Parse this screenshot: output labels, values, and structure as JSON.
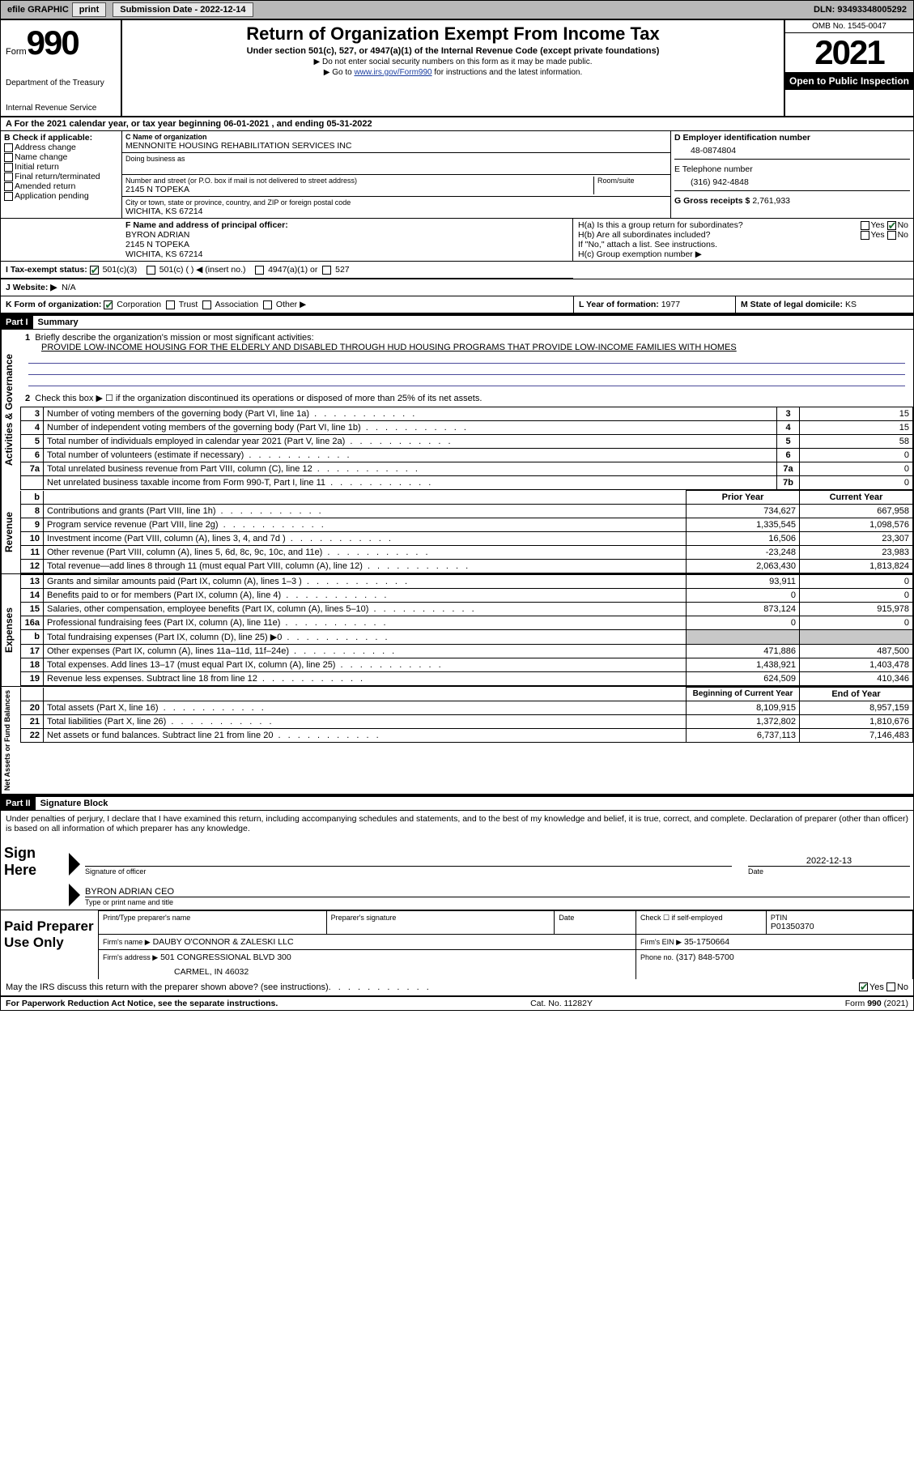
{
  "topbar": {
    "efile_label": "efile GRAPHIC",
    "print_btn": "print",
    "submission_label": "Submission Date - 2022-12-14",
    "dln_label": "DLN: 93493348005292"
  },
  "header": {
    "form_word": "Form",
    "form_num": "990",
    "dept": "Department of the Treasury",
    "irs": "Internal Revenue Service",
    "title": "Return of Organization Exempt From Income Tax",
    "subtitle": "Under section 501(c), 527, or 4947(a)(1) of the Internal Revenue Code (except private foundations)",
    "note1": "▶ Do not enter social security numbers on this form as it may be made public.",
    "note2_pre": "▶ Go to ",
    "note2_link": "www.irs.gov/Form990",
    "note2_post": " for instructions and the latest information.",
    "omb": "OMB No. 1545-0047",
    "year": "2021",
    "inspect": "Open to Public Inspection"
  },
  "sectionA": {
    "year_line": "A For the 2021 calendar year, or tax year beginning 06-01-2021   , and ending 05-31-2022",
    "b_label": "B Check if applicable:",
    "b_opts": [
      "Address change",
      "Name change",
      "Initial return",
      "Final return/terminated",
      "Amended return",
      "Application pending"
    ],
    "c_label": "C Name of organization",
    "org_name": "MENNONITE HOUSING REHABILITATION SERVICES INC",
    "dba_label": "Doing business as",
    "addr_label": "Number and street (or P.O. box if mail is not delivered to street address)",
    "room_label": "Room/suite",
    "addr": "2145 N TOPEKA",
    "city_label": "City or town, state or province, country, and ZIP or foreign postal code",
    "city": "WICHITA, KS  67214",
    "d_label": "D Employer identification number",
    "ein": "48-0874804",
    "e_label": "E Telephone number",
    "phone": "(316) 942-4848",
    "g_label": "G Gross receipts $",
    "gross": "2,761,933",
    "f_label": "F  Name and address of principal officer:",
    "officer_name": "BYRON ADRIAN",
    "officer_addr": "2145 N TOPEKA",
    "officer_city": "WICHITA, KS  67214",
    "ha_label": "H(a)  Is this a group return for subordinates?",
    "hb_label": "H(b)  Are all subordinates included?",
    "hb_note": "If \"No,\" attach a list. See instructions.",
    "hc_label": "H(c)  Group exemption number  ▶",
    "yes": "Yes",
    "no": "No",
    "i_label": "I   Tax-exempt status:",
    "i_501c3": "501(c)(3)",
    "i_501c": "501(c) (  ) ◀ (insert no.)",
    "i_4947": "4947(a)(1) or",
    "i_527": "527",
    "j_label": "J   Website: ▶",
    "website": "N/A",
    "k_label": "K Form of organization:",
    "k_corp": "Corporation",
    "k_trust": "Trust",
    "k_assoc": "Association",
    "k_other": "Other ▶",
    "l_label": "L Year of formation: ",
    "l_val": "1977",
    "m_label": "M State of legal domicile: ",
    "m_val": "KS"
  },
  "part1": {
    "hdr": "Part I",
    "title": "Summary",
    "vlabel_act": "Activities & Governance",
    "vlabel_rev": "Revenue",
    "vlabel_exp": "Expenses",
    "vlabel_net": "Net Assets or Fund Balances",
    "line1_label": "Briefly describe the organization's mission or most significant activities:",
    "mission": "PROVIDE LOW-INCOME HOUSING FOR THE ELDERLY AND DISABLED THROUGH HUD HOUSING PROGRAMS THAT PROVIDE LOW-INCOME FAMILIES WITH HOMES",
    "line2": "Check this box ▶ ☐  if the organization discontinued its operations or disposed of more than 25% of its net assets.",
    "rows_gov": [
      {
        "n": "3",
        "d": "Number of voting members of the governing body (Part VI, line 1a)",
        "b": "3",
        "v": "15"
      },
      {
        "n": "4",
        "d": "Number of independent voting members of the governing body (Part VI, line 1b)",
        "b": "4",
        "v": "15"
      },
      {
        "n": "5",
        "d": "Total number of individuals employed in calendar year 2021 (Part V, line 2a)",
        "b": "5",
        "v": "58"
      },
      {
        "n": "6",
        "d": "Total number of volunteers (estimate if necessary)",
        "b": "6",
        "v": "0"
      },
      {
        "n": "7a",
        "d": "Total unrelated business revenue from Part VIII, column (C), line 12",
        "b": "7a",
        "v": "0"
      },
      {
        "n": "",
        "d": "Net unrelated business taxable income from Form 990-T, Part I, line 11",
        "b": "7b",
        "v": "0"
      }
    ],
    "col_prior": "Prior Year",
    "col_current": "Current Year",
    "rows_rev": [
      {
        "n": "8",
        "d": "Contributions and grants (Part VIII, line 1h)",
        "p": "734,627",
        "c": "667,958"
      },
      {
        "n": "9",
        "d": "Program service revenue (Part VIII, line 2g)",
        "p": "1,335,545",
        "c": "1,098,576"
      },
      {
        "n": "10",
        "d": "Investment income (Part VIII, column (A), lines 3, 4, and 7d )",
        "p": "16,506",
        "c": "23,307"
      },
      {
        "n": "11",
        "d": "Other revenue (Part VIII, column (A), lines 5, 6d, 8c, 9c, 10c, and 11e)",
        "p": "-23,248",
        "c": "23,983"
      },
      {
        "n": "12",
        "d": "Total revenue—add lines 8 through 11 (must equal Part VIII, column (A), line 12)",
        "p": "2,063,430",
        "c": "1,813,824"
      }
    ],
    "rows_exp": [
      {
        "n": "13",
        "d": "Grants and similar amounts paid (Part IX, column (A), lines 1–3 )",
        "p": "93,911",
        "c": "0"
      },
      {
        "n": "14",
        "d": "Benefits paid to or for members (Part IX, column (A), line 4)",
        "p": "0",
        "c": "0"
      },
      {
        "n": "15",
        "d": "Salaries, other compensation, employee benefits (Part IX, column (A), lines 5–10)",
        "p": "873,124",
        "c": "915,978"
      },
      {
        "n": "16a",
        "d": "Professional fundraising fees (Part IX, column (A), line 11e)",
        "p": "0",
        "c": "0"
      },
      {
        "n": "b",
        "d": "Total fundraising expenses (Part IX, column (D), line 25) ▶0",
        "p": "",
        "c": "",
        "shade": true
      },
      {
        "n": "17",
        "d": "Other expenses (Part IX, column (A), lines 11a–11d, 11f–24e)",
        "p": "471,886",
        "c": "487,500"
      },
      {
        "n": "18",
        "d": "Total expenses. Add lines 13–17 (must equal Part IX, column (A), line 25)",
        "p": "1,438,921",
        "c": "1,403,478"
      },
      {
        "n": "19",
        "d": "Revenue less expenses. Subtract line 18 from line 12",
        "p": "624,509",
        "c": "410,346"
      }
    ],
    "col_begin": "Beginning of Current Year",
    "col_end": "End of Year",
    "rows_net": [
      {
        "n": "20",
        "d": "Total assets (Part X, line 16)",
        "p": "8,109,915",
        "c": "8,957,159"
      },
      {
        "n": "21",
        "d": "Total liabilities (Part X, line 26)",
        "p": "1,372,802",
        "c": "1,810,676"
      },
      {
        "n": "22",
        "d": "Net assets or fund balances. Subtract line 21 from line 20",
        "p": "6,737,113",
        "c": "7,146,483"
      }
    ]
  },
  "part2": {
    "hdr": "Part II",
    "title": "Signature Block",
    "penalty": "Under penalties of perjury, I declare that I have examined this return, including accompanying schedules and statements, and to the best of my knowledge and belief, it is true, correct, and complete. Declaration of preparer (other than officer) is based on all information of which preparer has any knowledge.",
    "sign_here": "Sign Here",
    "sig_officer": "Signature of officer",
    "sig_date": "Date",
    "sig_date_val": "2022-12-13",
    "sig_name": "BYRON ADRIAN CEO",
    "sig_name_lbl": "Type or print name and title",
    "paid": "Paid Preparer Use Only",
    "p_name_lbl": "Print/Type preparer's name",
    "p_sig_lbl": "Preparer's signature",
    "p_date_lbl": "Date",
    "p_self_lbl": "Check ☐ if self-employed",
    "p_ptin_lbl": "PTIN",
    "p_ptin": "P01350370",
    "p_firm_lbl": "Firm's name    ▶",
    "p_firm": "DAUBY O'CONNOR & ZALESKI LLC",
    "p_ein_lbl": "Firm's EIN ▶",
    "p_ein": "35-1750664",
    "p_addr_lbl": "Firm's address ▶",
    "p_addr": "501 CONGRESSIONAL BLVD 300",
    "p_addr2": "CARMEL, IN  46032",
    "p_phone_lbl": "Phone no.",
    "p_phone": "(317) 848-5700",
    "discuss": "May the IRS discuss this return with the preparer shown above? (see instructions)"
  },
  "footer": {
    "pra": "For Paperwork Reduction Act Notice, see the separate instructions.",
    "cat": "Cat. No. 11282Y",
    "form": "Form 990 (2021)"
  }
}
